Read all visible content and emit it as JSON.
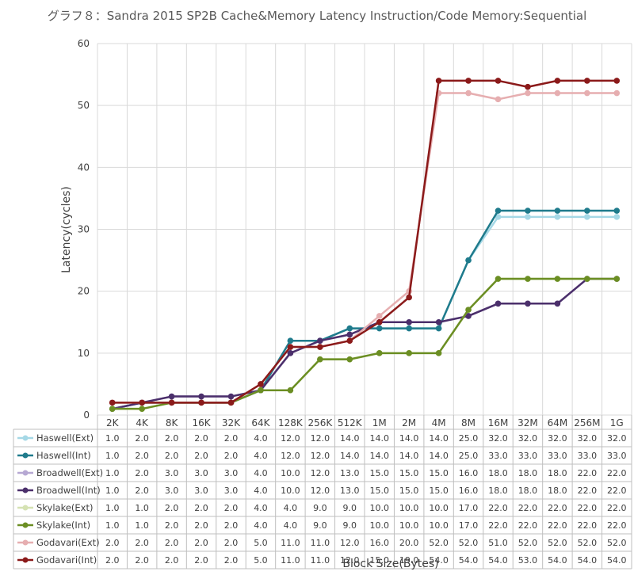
{
  "chart_data": {
    "type": "line",
    "title": "グラフ８：Sandra 2015 SP2B Cache&Memory Latency Instruction/Code Memory:Sequential",
    "xlabel": "Block Size(Bytes)",
    "ylabel": "Latency(cycles)",
    "ylim": [
      0,
      60
    ],
    "yticks": [
      0,
      10,
      20,
      30,
      40,
      50,
      60
    ],
    "grid": true,
    "legend": "data-table",
    "categories": [
      "2K",
      "4K",
      "8K",
      "16K",
      "32K",
      "64K",
      "128K",
      "256K",
      "512K",
      "1M",
      "2M",
      "4M",
      "8M",
      "16M",
      "32M",
      "64M",
      "256M",
      "1G"
    ],
    "series": [
      {
        "name": "Haswell(Ext)",
        "color": "#a5d8e6",
        "values": [
          1.0,
          2.0,
          2.0,
          2.0,
          2.0,
          4.0,
          12.0,
          12.0,
          14.0,
          14.0,
          14.0,
          14.0,
          25.0,
          32.0,
          32.0,
          32.0,
          32.0,
          32.0
        ]
      },
      {
        "name": "Haswell(Int)",
        "color": "#1f7b8c",
        "values": [
          1.0,
          2.0,
          2.0,
          2.0,
          2.0,
          4.0,
          12.0,
          12.0,
          14.0,
          14.0,
          14.0,
          14.0,
          25.0,
          33.0,
          33.0,
          33.0,
          33.0,
          33.0
        ]
      },
      {
        "name": "Broadwell(Ext)",
        "color": "#b6a8d3",
        "values": [
          1.0,
          2.0,
          3.0,
          3.0,
          3.0,
          4.0,
          10.0,
          12.0,
          13.0,
          15.0,
          15.0,
          15.0,
          16.0,
          18.0,
          18.0,
          18.0,
          22.0,
          22.0
        ]
      },
      {
        "name": "Broadwell(Int)",
        "color": "#4b2f6b",
        "values": [
          1.0,
          2.0,
          3.0,
          3.0,
          3.0,
          4.0,
          10.0,
          12.0,
          13.0,
          15.0,
          15.0,
          15.0,
          16.0,
          18.0,
          18.0,
          18.0,
          22.0,
          22.0
        ]
      },
      {
        "name": "Skylake(Ext)",
        "color": "#d5e2b3",
        "values": [
          1.0,
          1.0,
          2.0,
          2.0,
          2.0,
          4.0,
          4.0,
          9.0,
          9.0,
          10.0,
          10.0,
          10.0,
          17.0,
          22.0,
          22.0,
          22.0,
          22.0,
          22.0
        ]
      },
      {
        "name": "Skylake(Int)",
        "color": "#6b8e23",
        "values": [
          1.0,
          1.0,
          2.0,
          2.0,
          2.0,
          4.0,
          4.0,
          9.0,
          9.0,
          10.0,
          10.0,
          10.0,
          17.0,
          22.0,
          22.0,
          22.0,
          22.0,
          22.0
        ]
      },
      {
        "name": "Godavari(Ext)",
        "color": "#e6aeb0",
        "values": [
          2.0,
          2.0,
          2.0,
          2.0,
          2.0,
          5.0,
          11.0,
          11.0,
          12.0,
          16.0,
          20.0,
          52.0,
          52.0,
          51.0,
          52.0,
          52.0,
          52.0,
          52.0
        ]
      },
      {
        "name": "Godavari(Int)",
        "color": "#8b1a1a",
        "values": [
          2.0,
          2.0,
          2.0,
          2.0,
          2.0,
          5.0,
          11.0,
          11.0,
          12.0,
          15.0,
          19.0,
          54.0,
          54.0,
          54.0,
          53.0,
          54.0,
          54.0,
          54.0
        ]
      }
    ]
  }
}
